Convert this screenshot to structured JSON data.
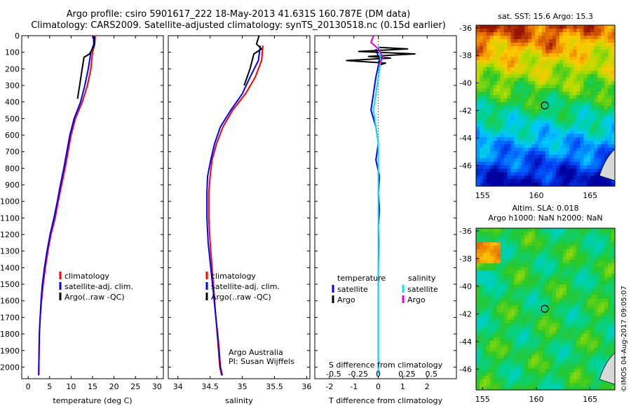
{
  "header": {
    "line1": "Argo profile: csiro 5901617_222 18-May-2013 41.631S 160.787E (DM data)",
    "line2": "Climatology: CARS2009. Satellite-adjusted climatology: synTS_20130518.nc (0.15d earlier)"
  },
  "sidebar_stamp": "©IMOS 04-Aug-2017 09:05:07",
  "colors": {
    "climatology": "#ff0000",
    "satellite": "#0000ff",
    "argo": "#000000",
    "sat_salinity": "#00e5e5",
    "argo_salinity": "#e000e0"
  },
  "chart_data": [
    {
      "id": "temperature-profile",
      "type": "line",
      "xlabel": "temperature (deg C)",
      "xlim": [
        -1.5,
        31.5
      ],
      "xticks": [
        0,
        5,
        10,
        15,
        20,
        25,
        30
      ],
      "ylim": [
        2070,
        0
      ],
      "yticks": [
        0,
        100,
        200,
        300,
        400,
        500,
        600,
        700,
        800,
        900,
        1000,
        1100,
        1200,
        1300,
        1400,
        1500,
        1600,
        1700,
        1800,
        1900,
        2000
      ],
      "legend": [
        "climatology",
        "satellite-adj. clim.",
        "Argo(..raw -QC)"
      ],
      "series": [
        {
          "name": "climatology",
          "color": "#ff0000",
          "x": [
            15.6,
            15.5,
            15.0,
            14.6,
            13.8,
            12.6,
            11.0,
            10.0,
            9.3,
            8.6,
            7.8,
            7.0,
            6.3,
            5.3,
            4.6,
            4.0,
            3.5,
            3.1,
            2.8,
            2.6,
            2.45
          ],
          "y": [
            0,
            50,
            100,
            200,
            300,
            400,
            500,
            600,
            700,
            800,
            900,
            1000,
            1100,
            1200,
            1300,
            1400,
            1500,
            1600,
            1700,
            1800,
            2050
          ]
        },
        {
          "name": "satellite-adj. clim.",
          "color": "#0000ff",
          "x": [
            15.2,
            15.3,
            14.6,
            14.0,
            13.2,
            12.2,
            10.7,
            9.7,
            9.0,
            8.3,
            7.5,
            6.8,
            6.0,
            5.1,
            4.4,
            3.8,
            3.3,
            3.0,
            2.8,
            2.6,
            2.45
          ],
          "y": [
            0,
            50,
            100,
            200,
            300,
            400,
            500,
            600,
            700,
            800,
            900,
            1000,
            1100,
            1200,
            1300,
            1400,
            1500,
            1600,
            1700,
            1800,
            2050
          ]
        },
        {
          "name": "Argo(..raw -QC)",
          "color": "#000000",
          "x": [
            15.5,
            15.4,
            14.3,
            13.7,
            13.0,
            12.4,
            12.0,
            11.5
          ],
          "y": [
            5,
            60,
            110,
            120,
            130,
            230,
            300,
            380
          ]
        }
      ]
    },
    {
      "id": "salinity-profile",
      "type": "line",
      "xlabel": "salinity",
      "xlim": [
        33.85,
        36.05
      ],
      "xticks": [
        34,
        34.5,
        35,
        35.5,
        36
      ],
      "ylim": [
        2070,
        0
      ],
      "legend": [
        "climatology",
        "satellite-adj. clim.",
        "Argo(..raw -QC)"
      ],
      "annotation": [
        "Argo Australia",
        "PI: Susan Wijffels"
      ],
      "series": [
        {
          "name": "climatology",
          "color": "#ff0000",
          "x": [
            35.32,
            35.3,
            35.2,
            35.05,
            34.85,
            34.7,
            34.6,
            34.53,
            34.5,
            34.48,
            34.48,
            34.5,
            34.53,
            34.56,
            34.59,
            34.62,
            34.65,
            34.68
          ],
          "y": [
            60,
            150,
            250,
            350,
            450,
            550,
            650,
            750,
            850,
            950,
            1100,
            1250,
            1400,
            1550,
            1700,
            1850,
            2000,
            2050
          ]
        },
        {
          "name": "satellite-adj. clim.",
          "color": "#0000ff",
          "x": [
            35.28,
            35.25,
            35.12,
            35.0,
            34.82,
            34.66,
            34.57,
            34.51,
            34.46,
            34.45,
            34.45,
            34.47,
            34.51,
            34.55,
            34.59,
            34.63,
            34.66,
            34.69
          ],
          "y": [
            60,
            150,
            250,
            350,
            450,
            550,
            650,
            750,
            850,
            950,
            1100,
            1250,
            1400,
            1550,
            1700,
            1850,
            2000,
            2050
          ]
        },
        {
          "name": "Argo(..raw -QC)",
          "color": "#000000",
          "x": [
            35.26,
            35.22,
            35.3,
            35.18,
            35.12,
            35.03
          ],
          "y": [
            0,
            50,
            80,
            110,
            200,
            300
          ]
        }
      ]
    },
    {
      "id": "difference-profile",
      "type": "line",
      "xlabel": "T difference from climatology",
      "top_label": "S difference from climatology",
      "xlim": [
        -2.6,
        3.2
      ],
      "xticks": [
        -2,
        -1,
        0,
        1,
        2
      ],
      "top_ticks": [
        "-0.5",
        "-0.25",
        "0",
        "0.25",
        "0.5"
      ],
      "ylim": [
        2070,
        0
      ],
      "legend_titles": [
        "temperature",
        "salinity"
      ],
      "legend": [
        "satellite",
        "Argo",
        "satellite",
        "Argo"
      ],
      "series": [
        {
          "name": "satellite",
          "color": "#0000ff",
          "x": [
            -0.1,
            0.05,
            -0.1,
            -0.2,
            -0.3,
            -0.1,
            0.0,
            -0.1,
            0.05,
            0.0,
            0.05,
            0.0,
            0.02,
            0.0,
            0.0,
            0.0,
            0.0
          ],
          "y": [
            80,
            150,
            250,
            350,
            450,
            550,
            650,
            750,
            850,
            950,
            1050,
            1150,
            1250,
            1400,
            1600,
            1800,
            2050
          ]
        },
        {
          "name": "Argo",
          "color": "#000000",
          "x": [
            0.0,
            1.2,
            -0.8,
            1.5,
            -0.4,
            0.5,
            -1.3,
            0.3,
            0.0
          ],
          "y": [
            70,
            80,
            95,
            110,
            125,
            135,
            150,
            165,
            180
          ]
        },
        {
          "name": "satellite",
          "color": "#00e5e5",
          "x": [
            0.0,
            0.1,
            0.0,
            -0.1,
            -0.2,
            0.0,
            0.0,
            0.0,
            0.0,
            0.0
          ],
          "y": [
            60,
            150,
            250,
            350,
            450,
            650,
            900,
            1200,
            1600,
            2050
          ]
        },
        {
          "name": "Argo",
          "color": "#e000e0",
          "x": [
            -0.2,
            -0.3,
            0.0,
            0.2,
            0.0
          ],
          "y": [
            0,
            40,
            80,
            130,
            180
          ]
        }
      ]
    },
    {
      "id": "sst-map",
      "type": "heatmap",
      "title": "sat. SST: 15.6 Argo: 15.3",
      "xlim": [
        154.4,
        167.3
      ],
      "ylim": [
        -47.5,
        -35.8
      ],
      "xticks": [
        155,
        160,
        165
      ],
      "yticks": [
        -36,
        -38,
        -40,
        -42,
        -44,
        -46
      ],
      "marker": {
        "lon": 160.787,
        "lat": -41.631
      }
    },
    {
      "id": "sla-map",
      "type": "heatmap",
      "title": "Altim. SLA: 0.018",
      "subtitle": "Argo h1000: NaN h2000: NaN",
      "xlim": [
        154.4,
        167.3
      ],
      "ylim": [
        -47.5,
        -35.8
      ],
      "xticks": [
        155,
        160,
        165
      ],
      "yticks": [
        -36,
        -38,
        -40,
        -42,
        -44,
        -46
      ],
      "marker": {
        "lon": 160.787,
        "lat": -41.631
      }
    }
  ]
}
